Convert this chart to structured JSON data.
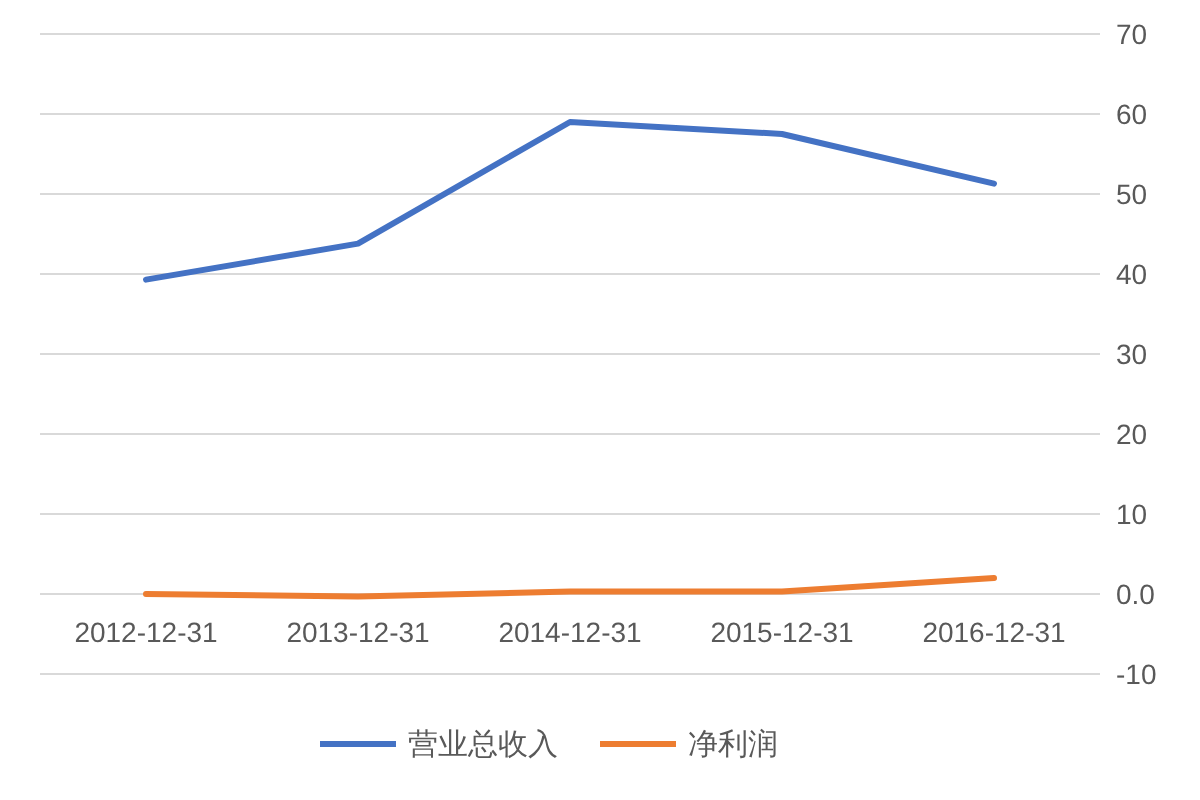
{
  "chart_data": {
    "type": "line",
    "categories": [
      "2012-12-31",
      "2013-12-31",
      "2014-12-31",
      "2015-12-31",
      "2016-12-31"
    ],
    "series": [
      {
        "name": "营业总收入",
        "color": "#4472c4",
        "values": [
          39.3,
          43.8,
          59,
          57.5,
          51.3
        ]
      },
      {
        "name": "净利润",
        "color": "#ed7d31",
        "values": [
          0,
          -0.3,
          0.3,
          0.3,
          2.0
        ]
      }
    ],
    "ylim": [
      -10,
      70
    ],
    "yticks": [
      {
        "value": -10,
        "label": "-10"
      },
      {
        "value": 0,
        "label": "0.0"
      },
      10,
      20,
      30,
      40,
      50,
      60,
      70
    ],
    "grid": "y",
    "legend": "bottom",
    "marker": "none",
    "line_style": "solid"
  }
}
